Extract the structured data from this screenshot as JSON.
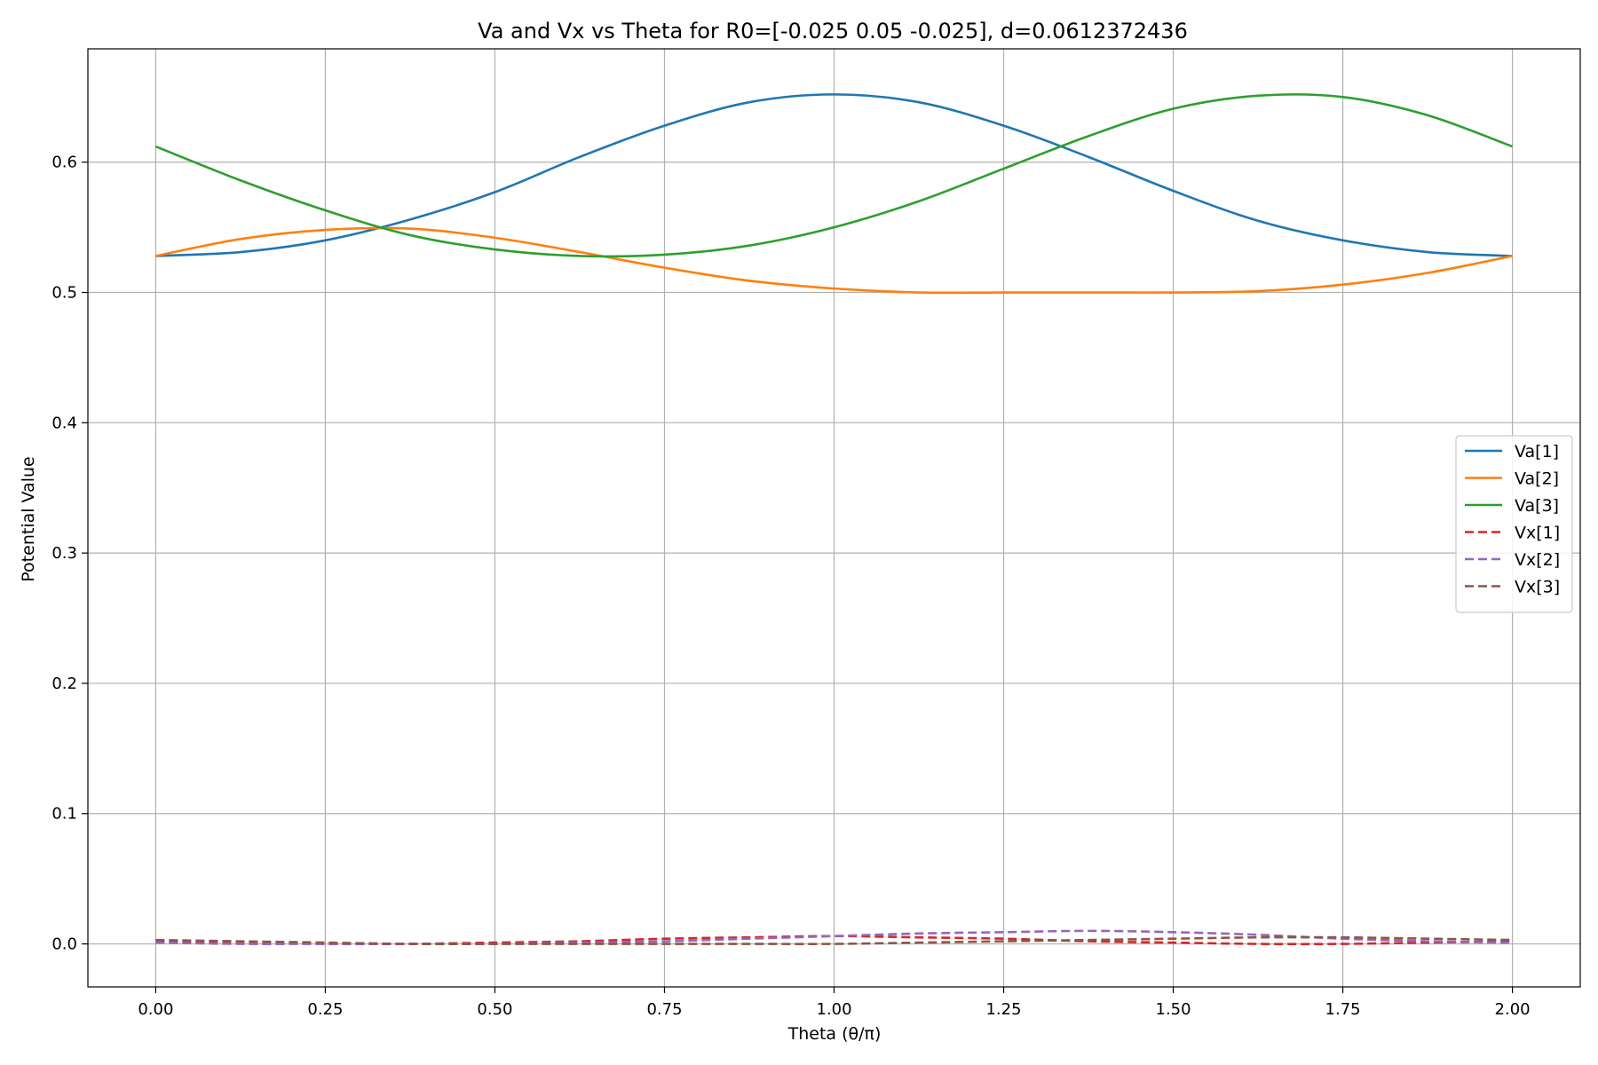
{
  "chart_data": {
    "type": "line",
    "title": "Va and Vx vs Theta for R0=[-0.025  0.05  -0.025], d=0.0612372436",
    "xlabel": "Theta (θ/π)",
    "ylabel": "Potential Value",
    "xlim": [
      -0.1,
      2.1
    ],
    "ylim": [
      -0.033,
      0.687
    ],
    "xticks": [
      0.0,
      0.25,
      0.5,
      0.75,
      1.0,
      1.25,
      1.5,
      1.75,
      2.0
    ],
    "xtick_labels": [
      "0.00",
      "0.25",
      "0.50",
      "0.75",
      "1.00",
      "1.25",
      "1.50",
      "1.75",
      "2.00"
    ],
    "yticks": [
      0.0,
      0.1,
      0.2,
      0.3,
      0.4,
      0.5,
      0.6
    ],
    "ytick_labels": [
      "0.0",
      "0.1",
      "0.2",
      "0.3",
      "0.4",
      "0.5",
      "0.6"
    ],
    "grid": true,
    "legend_position": "center-right",
    "x": [
      0.0,
      0.125,
      0.25,
      0.375,
      0.5,
      0.625,
      0.75,
      0.875,
      1.0,
      1.125,
      1.25,
      1.375,
      1.5,
      1.625,
      1.75,
      1.875,
      2.0
    ],
    "series": [
      {
        "name": "Va[1]",
        "color": "#1f77b4",
        "dash": "solid",
        "values": [
          0.528,
          0.531,
          0.54,
          0.556,
          0.577,
          0.604,
          0.628,
          0.646,
          0.652,
          0.646,
          0.628,
          0.604,
          0.578,
          0.555,
          0.54,
          0.531,
          0.528
        ]
      },
      {
        "name": "Va[2]",
        "color": "#ff7f0e",
        "dash": "solid",
        "values": [
          0.528,
          0.541,
          0.548,
          0.549,
          0.542,
          0.531,
          0.519,
          0.509,
          0.503,
          0.5,
          0.5,
          0.5,
          0.5,
          0.501,
          0.506,
          0.515,
          0.528
        ]
      },
      {
        "name": "Va[3]",
        "color": "#2ca02c",
        "dash": "solid",
        "values": [
          0.612,
          0.586,
          0.563,
          0.544,
          0.533,
          0.528,
          0.529,
          0.536,
          0.55,
          0.57,
          0.595,
          0.62,
          0.641,
          0.651,
          0.65,
          0.636,
          0.612
        ]
      },
      {
        "name": "Vx[1]",
        "color": "#d62728",
        "dash": "dashed",
        "values": [
          0.002,
          0.001,
          0.0,
          0.0,
          0.001,
          0.002,
          0.004,
          0.005,
          0.006,
          0.005,
          0.004,
          0.002,
          0.001,
          0.0,
          0.0,
          0.001,
          0.002
        ]
      },
      {
        "name": "Vx[2]",
        "color": "#9467bd",
        "dash": "dashed",
        "values": [
          0.001,
          0.0,
          0.0,
          0.0,
          0.0,
          0.001,
          0.002,
          0.004,
          0.006,
          0.008,
          0.009,
          0.01,
          0.009,
          0.007,
          0.004,
          0.002,
          0.001
        ]
      },
      {
        "name": "Vx[3]",
        "color": "#8c564b",
        "dash": "dashed",
        "values": [
          0.003,
          0.002,
          0.001,
          0.0,
          0.0,
          0.0,
          0.0,
          0.0,
          0.0,
          0.001,
          0.002,
          0.003,
          0.004,
          0.005,
          0.005,
          0.004,
          0.003
        ]
      }
    ]
  }
}
